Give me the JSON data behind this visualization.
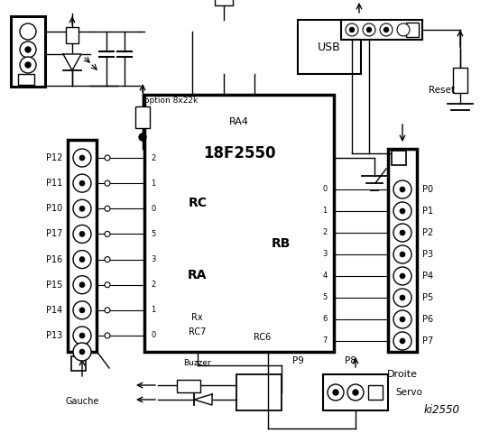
{
  "bg_color": "#ffffff",
  "chip_label": "18F2550",
  "chip_sublabel": "RA4",
  "chip_rc_label": "RC",
  "chip_ra_label": "RA",
  "chip_rb_label": "RB",
  "chip_rx_label": "Rx",
  "chip_rc7_label": "RC7",
  "chip_rc6_label": "RC6",
  "left_labels": [
    "P12",
    "P11",
    "P10",
    "P17",
    "P16",
    "P15",
    "P14",
    "P13"
  ],
  "right_labels": [
    "P0",
    "P1",
    "P2",
    "P3",
    "P4",
    "P5",
    "P6",
    "P7"
  ],
  "left_pin_nums": [
    "2",
    "1",
    "0",
    "5",
    "3",
    "2",
    "1",
    "0"
  ],
  "right_pin_nums": [
    "0",
    "1",
    "2",
    "3",
    "4",
    "5",
    "6",
    "7"
  ],
  "gauche_label": "Gauche",
  "droite_label": "Droite",
  "ki_label": "ki2550",
  "usb_label": "USB",
  "reset_label": "Reset",
  "servo_label": "Servo",
  "buzzer_label": "Buzzer",
  "p9_label": "P9",
  "p8_label": "P8",
  "option_label": "option 8x22k"
}
